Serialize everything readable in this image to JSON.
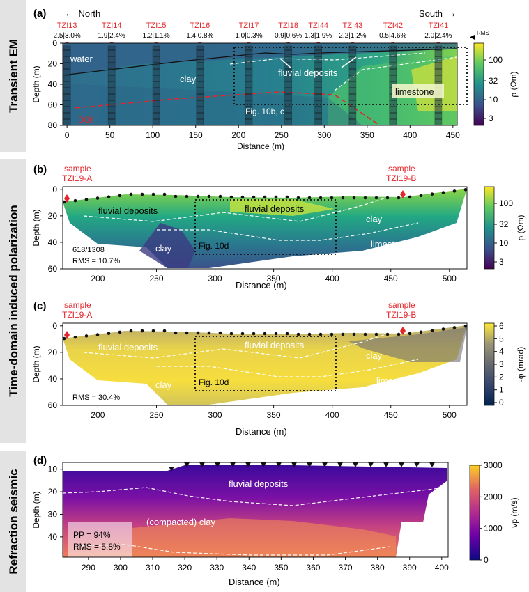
{
  "side_labels": {
    "a": "Transient EM",
    "bc": "Time-domain induced polarization",
    "d": "Refraction seismic"
  },
  "panel_a": {
    "letter": "(a)",
    "north": "North",
    "south": "South",
    "ylabel": "Depth (m)",
    "xlabel": "Distance (m)",
    "rms_label": "RMS",
    "stations": [
      {
        "name": "TZI13",
        "rms": "2.5|3.0%",
        "x": 0
      },
      {
        "name": "TZI14",
        "rms": "1.9|2.4%",
        "x": 52
      },
      {
        "name": "TZI15",
        "rms": "1.2|1.1%",
        "x": 104
      },
      {
        "name": "TZI16",
        "rms": "1.4|0.8%",
        "x": 155
      },
      {
        "name": "TZI17",
        "rms": "1.0|0.3%",
        "x": 212
      },
      {
        "name": "TZI18",
        "rms": "0.9|0.6%",
        "x": 258
      },
      {
        "name": "TZI44",
        "rms": "1.3|1.9%",
        "x": 293
      },
      {
        "name": "TZI43",
        "rms": "2.2|1.2%",
        "x": 333
      },
      {
        "name": "TZI42",
        "rms": "0.5|4.6%",
        "x": 380
      },
      {
        "name": "TZI41",
        "rms": "2.0|2.4%",
        "x": 433
      }
    ],
    "xticks": [
      "0",
      "50",
      "100",
      "150",
      "200",
      "250",
      "300",
      "350",
      "400",
      "450"
    ],
    "yticks": [
      "0",
      "20",
      "40",
      "60",
      "80"
    ],
    "annotations": {
      "water": "water",
      "clay": "clay",
      "fluvial": "fluvial deposits",
      "limestone": "limestone",
      "doi": "DOI",
      "fig": "Fig. 10b, c"
    },
    "colorbar": {
      "label": "ρ (Ωm)",
      "ticks": [
        "100",
        "32",
        "10",
        "3"
      ]
    }
  },
  "panel_b": {
    "letter": "(b)",
    "sample_a": "sample",
    "sample_a_id": "TZI19-A",
    "sample_b": "sample",
    "sample_b_id": "TZI19-B",
    "ylabel": "Depth (m)",
    "xlabel": "Distance (m)",
    "xticks": [
      "200",
      "250",
      "300",
      "350",
      "400",
      "450",
      "500"
    ],
    "yticks": [
      "0",
      "20",
      "40",
      "60"
    ],
    "annotations": {
      "fluvial_left": "fluvial deposits",
      "fluvial_mid": "fluvial deposits",
      "clay_right": "clay",
      "clay_left": "clay",
      "limestone": "limestone",
      "fig": "Fig. 10d",
      "count": "618/1308",
      "rms": "RMS = 10.7%"
    },
    "colorbar": {
      "label": "ρ (Ωm)",
      "ticks": [
        "100",
        "32",
        "10",
        "3"
      ]
    }
  },
  "panel_c": {
    "letter": "(c)",
    "sample_a": "sample",
    "sample_a_id": "TZI19-A",
    "sample_b": "sample",
    "sample_b_id": "TZI19-B",
    "ylabel": "Depth (m)",
    "xlabel": "Distance (m)",
    "xticks": [
      "200",
      "250",
      "300",
      "350",
      "400",
      "450",
      "500"
    ],
    "yticks": [
      "0",
      "20",
      "40",
      "60"
    ],
    "annotations": {
      "fluvial_left": "fluvial deposits",
      "fluvial_mid": "fluvial deposits",
      "clay_right": "clay",
      "clay_left": "clay",
      "limestone": "limestone",
      "fig": "Fig. 10d",
      "rms": "RMS = 30.4%"
    },
    "colorbar": {
      "label": "-φ (mrad)",
      "ticks": [
        "6",
        "5",
        "4",
        "3",
        "2",
        "1",
        "0"
      ]
    }
  },
  "panel_d": {
    "letter": "(d)",
    "ylabel": "Depth (m)",
    "xlabel": "Distance (m)",
    "xticks": [
      "290",
      "300",
      "310",
      "320",
      "330",
      "340",
      "350",
      "360",
      "370",
      "380",
      "390",
      "400"
    ],
    "yticks": [
      "10",
      "20",
      "30",
      "40"
    ],
    "annotations": {
      "fluvial": "fluvial deposits",
      "clay": "(compacted) clay",
      "pp": "PP = 94%",
      "rms": "RMS = 5.8%"
    },
    "colorbar": {
      "label": "vp (m/s)",
      "ticks": [
        "3000",
        "2000",
        "1000",
        "0"
      ]
    }
  },
  "colors": {
    "red": "#e4262b",
    "side_bg": "#e3e3e3"
  }
}
